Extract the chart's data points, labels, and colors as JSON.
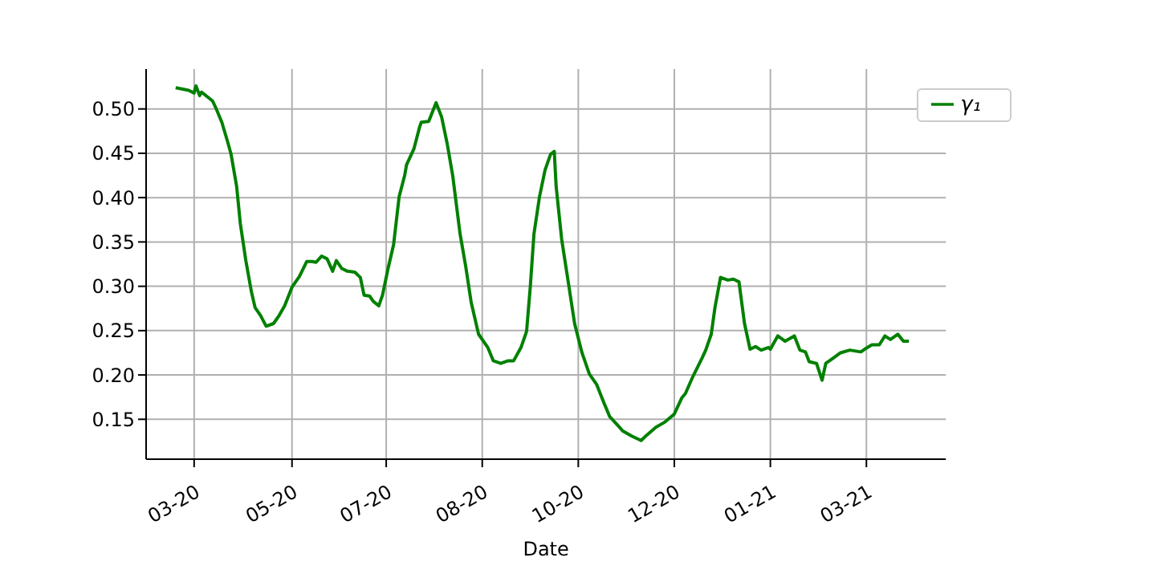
{
  "chart_data": {
    "type": "line",
    "xlabel": "Date",
    "x": [
      "2020-03-10",
      "2020-03-17",
      "2020-03-20",
      "2020-03-21",
      "2020-03-23",
      "2020-03-24",
      "2020-03-27",
      "2020-03-30",
      "2020-04-01",
      "2020-04-04",
      "2020-04-07",
      "2020-04-09",
      "2020-04-12",
      "2020-04-14",
      "2020-04-17",
      "2020-04-20",
      "2020-04-22",
      "2020-04-25",
      "2020-04-28",
      "2020-05-02",
      "2020-05-05",
      "2020-05-08",
      "2020-05-12",
      "2020-05-16",
      "2020-05-20",
      "2020-05-23",
      "2020-05-25",
      "2020-05-28",
      "2020-05-31",
      "2020-06-03",
      "2020-06-05",
      "2020-06-08",
      "2020-06-11",
      "2020-06-15",
      "2020-06-18",
      "2020-06-20",
      "2020-06-23",
      "2020-06-25",
      "2020-06-28",
      "2020-06-30",
      "2020-07-03",
      "2020-07-06",
      "2020-07-09",
      "2020-07-12",
      "2020-07-13",
      "2020-07-17",
      "2020-07-20",
      "2020-07-21",
      "2020-07-25",
      "2020-07-29",
      "2020-08-01",
      "2020-08-04",
      "2020-08-07",
      "2020-08-11",
      "2020-08-14",
      "2020-08-17",
      "2020-08-21",
      "2020-08-26",
      "2020-08-29",
      "2020-09-02",
      "2020-09-06",
      "2020-09-09",
      "2020-09-13",
      "2020-09-16",
      "2020-09-18",
      "2020-09-20",
      "2020-09-23",
      "2020-09-26",
      "2020-09-29",
      "2020-10-01",
      "2020-10-02",
      "2020-10-05",
      "2020-10-09",
      "2020-10-12",
      "2020-10-16",
      "2020-10-20",
      "2020-10-24",
      "2020-10-28",
      "2020-10-31",
      "2020-11-04",
      "2020-11-07",
      "2020-11-12",
      "2020-11-17",
      "2020-11-20",
      "2020-11-25",
      "2020-11-30",
      "2020-12-05",
      "2020-12-09",
      "2020-12-11",
      "2020-12-15",
      "2020-12-20",
      "2020-12-22",
      "2020-12-25",
      "2020-12-27",
      "2020-12-30",
      "2021-01-03",
      "2021-01-06",
      "2021-01-09",
      "2021-01-12",
      "2021-01-15",
      "2021-01-18",
      "2021-01-21",
      "2021-01-25",
      "2021-01-26",
      "2021-01-30",
      "2021-02-03",
      "2021-02-08",
      "2021-02-11",
      "2021-02-14",
      "2021-02-16",
      "2021-02-20",
      "2021-02-23",
      "2021-02-25",
      "2021-03-01",
      "2021-03-05",
      "2021-03-10",
      "2021-03-16",
      "2021-03-18",
      "2021-03-22",
      "2021-03-26",
      "2021-03-29",
      "2021-04-01",
      "2021-04-05",
      "2021-04-08",
      "2021-04-11"
    ],
    "series": [
      {
        "name": "γ₁",
        "color": "#008000",
        "values": [
          0.524,
          0.521,
          0.518,
          0.526,
          0.515,
          0.519,
          0.514,
          0.509,
          0.5,
          0.485,
          0.464,
          0.449,
          0.413,
          0.371,
          0.329,
          0.294,
          0.276,
          0.267,
          0.255,
          0.258,
          0.267,
          0.278,
          0.299,
          0.311,
          0.328,
          0.328,
          0.327,
          0.334,
          0.331,
          0.317,
          0.329,
          0.32,
          0.317,
          0.316,
          0.31,
          0.29,
          0.289,
          0.283,
          0.278,
          0.29,
          0.32,
          0.347,
          0.401,
          0.425,
          0.437,
          0.455,
          0.479,
          0.485,
          0.486,
          0.507,
          0.491,
          0.461,
          0.425,
          0.359,
          0.323,
          0.282,
          0.246,
          0.231,
          0.216,
          0.213,
          0.216,
          0.216,
          0.231,
          0.249,
          0.299,
          0.359,
          0.401,
          0.431,
          0.449,
          0.452,
          0.413,
          0.353,
          0.299,
          0.258,
          0.225,
          0.201,
          0.189,
          0.168,
          0.153,
          0.144,
          0.137,
          0.131,
          0.126,
          0.132,
          0.141,
          0.147,
          0.156,
          0.174,
          0.179,
          0.198,
          0.219,
          0.228,
          0.246,
          0.276,
          0.31,
          0.307,
          0.308,
          0.305,
          0.258,
          0.229,
          0.232,
          0.228,
          0.231,
          0.229,
          0.244,
          0.238,
          0.244,
          0.228,
          0.226,
          0.215,
          0.213,
          0.194,
          0.213,
          0.219,
          0.225,
          0.228,
          0.226,
          0.229,
          0.234,
          0.234,
          0.244,
          0.24,
          0.246,
          0.238,
          0.238
        ]
      }
    ],
    "xlim": [
      "2020-02-23",
      "2021-05-01"
    ],
    "xticks": [
      {
        "value": "2020-03-20",
        "label": "03-20"
      },
      {
        "value": "2020-05-12",
        "label": "05-20"
      },
      {
        "value": "2020-07-02",
        "label": "07-20"
      },
      {
        "value": "2020-08-23",
        "label": "08-20"
      },
      {
        "value": "2020-10-14",
        "label": "10-20"
      },
      {
        "value": "2020-12-05",
        "label": "12-20"
      },
      {
        "value": "2021-01-26",
        "label": "01-21"
      },
      {
        "value": "2021-03-19",
        "label": "03-21"
      }
    ],
    "ylim": [
      0.105,
      0.545
    ],
    "yticks": [
      {
        "value": 0.15,
        "label": "0.15"
      },
      {
        "value": 0.2,
        "label": "0.20"
      },
      {
        "value": 0.25,
        "label": "0.25"
      },
      {
        "value": 0.3,
        "label": "0.30"
      },
      {
        "value": 0.35,
        "label": "0.35"
      },
      {
        "value": 0.4,
        "label": "0.40"
      },
      {
        "value": 0.45,
        "label": "0.45"
      },
      {
        "value": 0.5,
        "label": "0.50"
      }
    ],
    "grid": true,
    "legend": "top right",
    "marker": "none",
    "line_style": "solid"
  }
}
